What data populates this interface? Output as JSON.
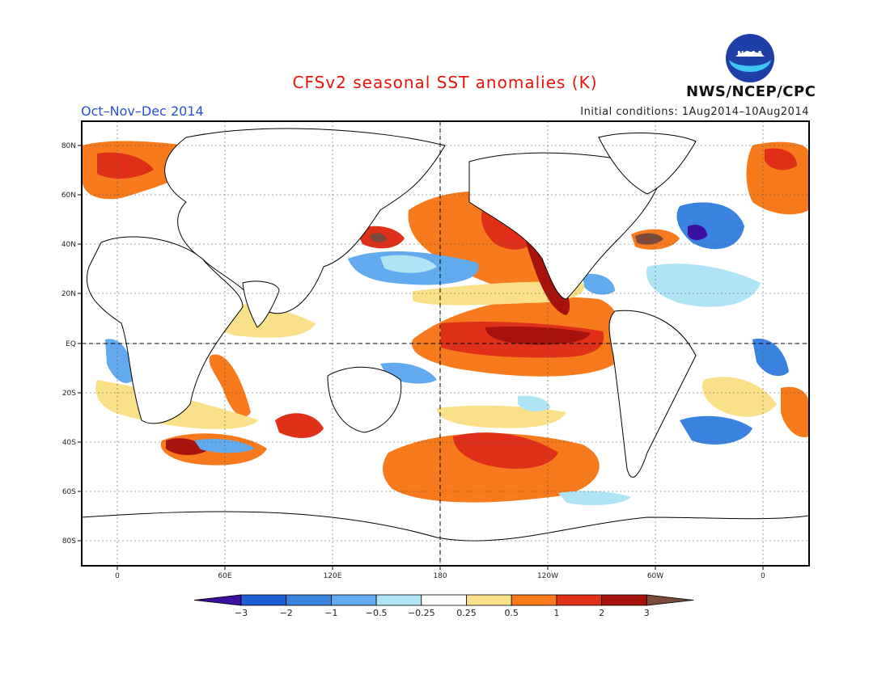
{
  "title": "CFSv2 seasonal SST anomalies (K)",
  "period": "Oct–Nov–Dec 2014",
  "initial_conditions": "Initial conditions: 1Aug2014–10Aug2014",
  "agency": "NWS/NCEP/CPC",
  "logo_text": "NOAA",
  "lat_labels": [
    "80N",
    "60N",
    "40N",
    "20N",
    "EQ",
    "20S",
    "40S",
    "60S",
    "80S"
  ],
  "lon_labels": [
    "0",
    "60E",
    "120E",
    "180",
    "120W",
    "60W",
    "0"
  ],
  "colorbar": {
    "labels": [
      "−3",
      "−2",
      "−1",
      "−0.5",
      "−0.25",
      "0.25",
      "0.5",
      "1",
      "2",
      "3"
    ],
    "colors": [
      "#3b0fa0",
      "#1d5fd0",
      "#3a82e0",
      "#62aaee",
      "#aee4f4",
      "#ffffff",
      "#fbe08a",
      "#f77a1c",
      "#e0301a",
      "#a8120c",
      "#7a4a3a"
    ]
  },
  "colors": {
    "coastline": "#000000",
    "gridline": "#555555",
    "title": "#e8120c",
    "period": "#2a4fd6"
  }
}
